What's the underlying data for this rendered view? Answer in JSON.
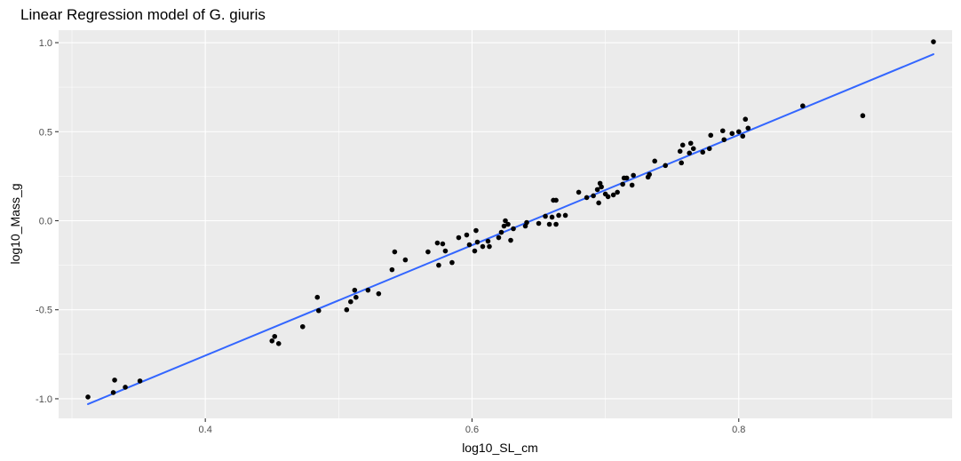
{
  "chart_data": {
    "type": "scatter",
    "title": "Linear Regression model of G. giuris",
    "xlabel": "log10_SL_cm",
    "ylabel": "log10_Mass_g",
    "xlim": [
      0.29,
      0.96
    ],
    "ylim": [
      -1.11,
      1.07
    ],
    "x_ticks": [
      0.4,
      0.6,
      0.8
    ],
    "x_tick_labels": [
      "0.4",
      "0.6",
      "0.8"
    ],
    "x_minor_ticks": [
      0.3,
      0.5,
      0.7,
      0.9
    ],
    "y_ticks": [
      -1.0,
      -0.5,
      0.0,
      0.5,
      1.0
    ],
    "y_tick_labels": [
      "-1.0",
      "-0.5",
      "0.0",
      "0.5",
      "1.0"
    ],
    "y_minor_ticks": [
      -0.75,
      -0.25,
      0.25,
      0.75
    ],
    "grid": true,
    "legend": "none",
    "colors": {
      "panel_background": "#ebebeb",
      "grid_major": "#ffffff",
      "point": "#000000",
      "regression_line": "#3366ff"
    },
    "points": [
      [
        0.312,
        -0.99
      ],
      [
        0.331,
        -0.965
      ],
      [
        0.332,
        -0.895
      ],
      [
        0.34,
        -0.935
      ],
      [
        0.351,
        -0.9
      ],
      [
        0.45,
        -0.675
      ],
      [
        0.452,
        -0.65
      ],
      [
        0.455,
        -0.69
      ],
      [
        0.473,
        -0.595
      ],
      [
        0.484,
        -0.43
      ],
      [
        0.485,
        -0.505
      ],
      [
        0.506,
        -0.5
      ],
      [
        0.509,
        -0.455
      ],
      [
        0.512,
        -0.39
      ],
      [
        0.513,
        -0.43
      ],
      [
        0.522,
        -0.39
      ],
      [
        0.53,
        -0.41
      ],
      [
        0.54,
        -0.275
      ],
      [
        0.542,
        -0.175
      ],
      [
        0.55,
        -0.22
      ],
      [
        0.567,
        -0.175
      ],
      [
        0.574,
        -0.125
      ],
      [
        0.575,
        -0.25
      ],
      [
        0.578,
        -0.13
      ],
      [
        0.58,
        -0.17
      ],
      [
        0.585,
        -0.235
      ],
      [
        0.59,
        -0.095
      ],
      [
        0.596,
        -0.08
      ],
      [
        0.598,
        -0.135
      ],
      [
        0.602,
        -0.17
      ],
      [
        0.603,
        -0.055
      ],
      [
        0.604,
        -0.12
      ],
      [
        0.608,
        -0.145
      ],
      [
        0.612,
        -0.115
      ],
      [
        0.613,
        -0.145
      ],
      [
        0.62,
        -0.095
      ],
      [
        0.622,
        -0.065
      ],
      [
        0.624,
        -0.03
      ],
      [
        0.625,
        0.0
      ],
      [
        0.627,
        -0.02
      ],
      [
        0.629,
        -0.11
      ],
      [
        0.631,
        -0.045
      ],
      [
        0.64,
        -0.03
      ],
      [
        0.641,
        -0.01
      ],
      [
        0.65,
        -0.015
      ],
      [
        0.655,
        0.025
      ],
      [
        0.658,
        -0.02
      ],
      [
        0.66,
        0.02
      ],
      [
        0.661,
        0.115
      ],
      [
        0.663,
        0.115
      ],
      [
        0.663,
        -0.02
      ],
      [
        0.665,
        0.03
      ],
      [
        0.67,
        0.03
      ],
      [
        0.68,
        0.16
      ],
      [
        0.686,
        0.13
      ],
      [
        0.691,
        0.14
      ],
      [
        0.694,
        0.175
      ],
      [
        0.695,
        0.1
      ],
      [
        0.696,
        0.21
      ],
      [
        0.697,
        0.19
      ],
      [
        0.7,
        0.15
      ],
      [
        0.702,
        0.135
      ],
      [
        0.706,
        0.145
      ],
      [
        0.709,
        0.16
      ],
      [
        0.713,
        0.205
      ],
      [
        0.714,
        0.24
      ],
      [
        0.716,
        0.24
      ],
      [
        0.72,
        0.2
      ],
      [
        0.721,
        0.255
      ],
      [
        0.732,
        0.245
      ],
      [
        0.733,
        0.26
      ],
      [
        0.737,
        0.335
      ],
      [
        0.745,
        0.31
      ],
      [
        0.756,
        0.39
      ],
      [
        0.757,
        0.325
      ],
      [
        0.758,
        0.425
      ],
      [
        0.763,
        0.38
      ],
      [
        0.764,
        0.435
      ],
      [
        0.766,
        0.405
      ],
      [
        0.773,
        0.385
      ],
      [
        0.778,
        0.405
      ],
      [
        0.779,
        0.48
      ],
      [
        0.788,
        0.505
      ],
      [
        0.789,
        0.455
      ],
      [
        0.795,
        0.49
      ],
      [
        0.8,
        0.5
      ],
      [
        0.803,
        0.475
      ],
      [
        0.805,
        0.57
      ],
      [
        0.807,
        0.52
      ],
      [
        0.848,
        0.645
      ],
      [
        0.893,
        0.59
      ],
      [
        0.946,
        1.005
      ]
    ],
    "regression": {
      "x": [
        0.312,
        0.946
      ],
      "y": [
        -1.03,
        0.935
      ]
    }
  }
}
